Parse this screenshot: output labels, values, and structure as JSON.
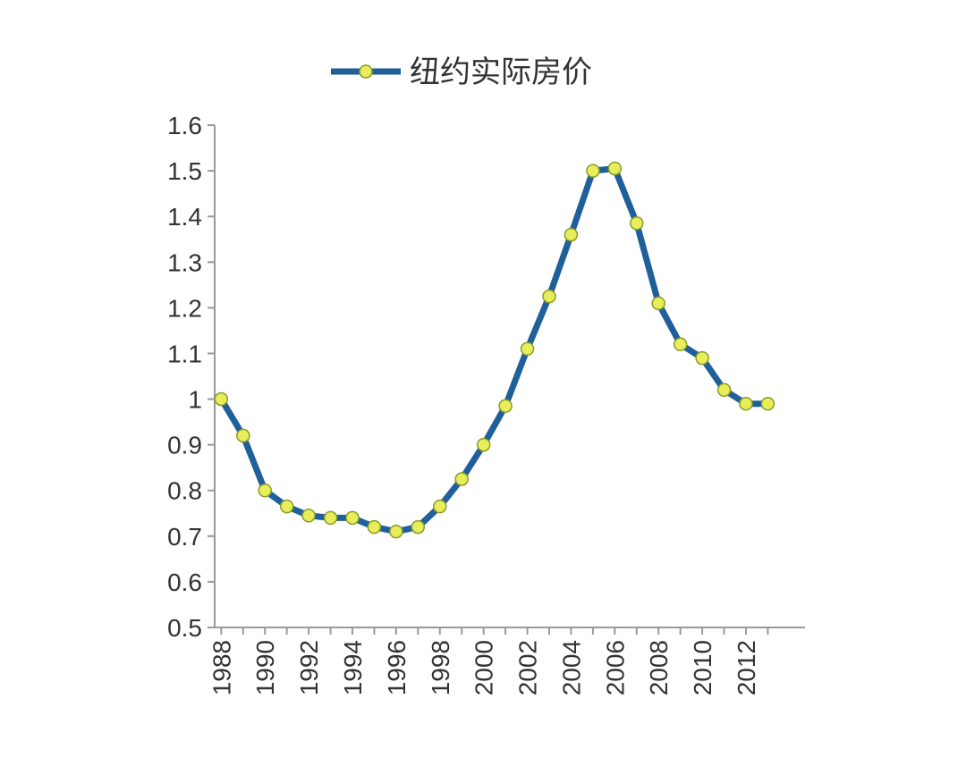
{
  "chart_data": {
    "type": "line",
    "title": "",
    "xlabel": "",
    "ylabel": "",
    "x": [
      1988,
      1989,
      1990,
      1991,
      1992,
      1993,
      1994,
      1995,
      1996,
      1997,
      1998,
      1999,
      2000,
      2001,
      2002,
      2003,
      2004,
      2005,
      2006,
      2007,
      2008,
      2009,
      2010,
      2011,
      2012,
      2013
    ],
    "x_tick_labels": [
      "1988",
      "1990",
      "1992",
      "1994",
      "1996",
      "1998",
      "2000",
      "2002",
      "2004",
      "2006",
      "2008",
      "2010",
      "2012"
    ],
    "series": [
      {
        "name": "纽约实际房价",
        "values": [
          1.0,
          0.92,
          0.8,
          0.765,
          0.745,
          0.74,
          0.74,
          0.72,
          0.71,
          0.72,
          0.765,
          0.825,
          0.9,
          0.985,
          1.11,
          1.225,
          1.36,
          1.5,
          1.505,
          1.385,
          1.21,
          1.12,
          1.09,
          1.02,
          0.99,
          0.99
        ]
      }
    ],
    "ylim": [
      0.5,
      1.6
    ],
    "y_ticks": [
      "0.5",
      "0.6",
      "0.7",
      "0.8",
      "0.9",
      "1",
      "1.1",
      "1.2",
      "1.3",
      "1.4",
      "1.5",
      "1.6"
    ],
    "grid": false,
    "legend_position": "top-center",
    "colors": {
      "line": "#1f5f9a",
      "marker_fill": "#e8ee5a",
      "marker_stroke": "#8a9a2a",
      "axis": "#999999"
    }
  }
}
